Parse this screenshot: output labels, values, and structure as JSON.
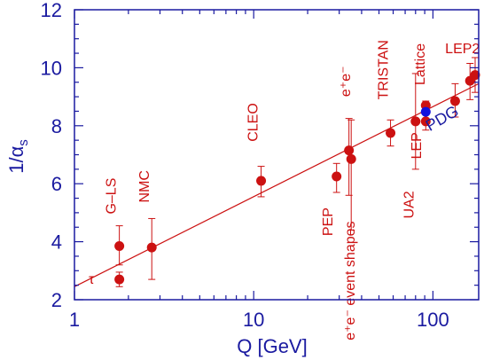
{
  "chart_data": {
    "type": "scatter",
    "title": "",
    "xlabel": "Q  [GeV]",
    "ylabel_main": "1/α",
    "ylabel_sub": "s",
    "x_scale": "log",
    "xlim": [
      1,
      180
    ],
    "ylim": [
      2,
      12
    ],
    "x_ticks": [
      {
        "value": 1,
        "label": "1"
      },
      {
        "value": 10,
        "label": "10"
      },
      {
        "value": 100,
        "label": "100"
      }
    ],
    "y_ticks": [
      {
        "value": 2,
        "label": "2"
      },
      {
        "value": 4,
        "label": "4"
      },
      {
        "value": 6,
        "label": "6"
      },
      {
        "value": 8,
        "label": "8"
      },
      {
        "value": 10,
        "label": "10"
      },
      {
        "value": 12,
        "label": "12"
      }
    ],
    "series": [
      {
        "points": [
          {
            "x": 1.78,
            "y": 2.7,
            "ylo": 2.45,
            "yhi": 2.95
          },
          {
            "x": 1.78,
            "y": 3.85,
            "ylo": 3.2,
            "yhi": 4.55
          },
          {
            "x": 2.7,
            "y": 3.8,
            "ylo": 2.7,
            "yhi": 4.8
          },
          {
            "x": 11,
            "y": 6.1,
            "ylo": 5.55,
            "yhi": 6.6
          },
          {
            "x": 29,
            "y": 6.25,
            "ylo": 5.7,
            "yhi": 6.7
          },
          {
            "x": 34,
            "y": 7.15,
            "ylo": 5.6,
            "yhi": 8.25
          },
          {
            "x": 35,
            "y": 6.85,
            "ylo": 4.4,
            "yhi": 8.2
          },
          {
            "x": 58,
            "y": 7.75,
            "ylo": 7.3,
            "yhi": 8.2
          },
          {
            "x": 80,
            "y": 8.15,
            "ylo": 6.5,
            "yhi": 9.8
          },
          {
            "x": 91.2,
            "y": 8.7,
            "ylo": 8.55,
            "yhi": 8.85
          },
          {
            "x": 91.2,
            "y": 8.15,
            "ylo": 7.85,
            "yhi": 8.45
          },
          {
            "x": 133,
            "y": 8.85,
            "ylo": 8.3,
            "yhi": 9.45
          },
          {
            "x": 161,
            "y": 9.55,
            "ylo": 8.9,
            "yhi": 10.15
          },
          {
            "x": 172,
            "y": 9.75,
            "ylo": 9.15,
            "yhi": 10.35
          }
        ]
      }
    ],
    "pdg_point": {
      "x": 91.2,
      "y": 8.48
    },
    "fit_line": [
      {
        "x": 1,
        "y": 2.45
      },
      {
        "x": 180,
        "y": 9.45
      }
    ],
    "annotations": [
      {
        "text": "τ",
        "x": 1.2,
        "y": 2.55
      },
      {
        "text": "G–LS",
        "x": 1.7,
        "y": 4.95
      },
      {
        "text": "NMC",
        "x": 2.6,
        "y": 5.35
      },
      {
        "text": "CLEO",
        "x": 10.5,
        "y": 7.45
      },
      {
        "text": "PEP",
        "x": 27.5,
        "y": 4.2
      },
      {
        "text": "e⁺e⁻ event shapes",
        "x": 36.5,
        "y": 0.6
      },
      {
        "text": "e⁺e⁻",
        "x": 34.5,
        "y": 9.0
      },
      {
        "text": "TRISTAN",
        "x": 56,
        "y": 8.9
      },
      {
        "text": "UA2",
        "x": 78,
        "y": 4.8
      },
      {
        "text": "LEP",
        "x": 86,
        "y": 6.85
      },
      {
        "text": "Lattice",
        "x": 90,
        "y": 9.4
      },
      {
        "text": "PDG",
        "x": 96,
        "y": 7.8
      },
      {
        "text": "LEP2",
        "x": 117,
        "y": 10.5
      }
    ],
    "colors": {
      "points": "#cc1111",
      "axes": "#1a1aa0",
      "pdg": "#1111dd"
    },
    "grid": false
  }
}
